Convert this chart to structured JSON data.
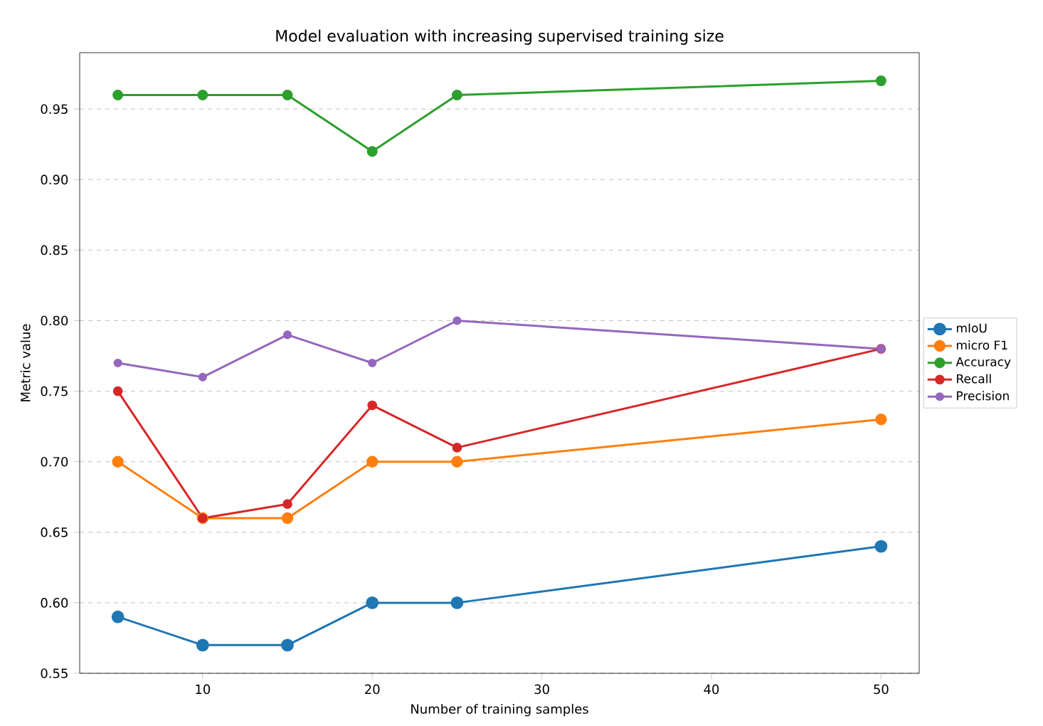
{
  "chart_data": {
    "type": "line",
    "title": "Model evaluation with increasing supervised training size",
    "xlabel": "Number of training samples",
    "ylabel": "Metric value",
    "x": [
      5,
      10,
      15,
      20,
      25,
      50
    ],
    "series": [
      {
        "name": "mIoU",
        "color": "#1f77b4",
        "values": [
          0.59,
          0.57,
          0.57,
          0.6,
          0.6,
          0.64
        ]
      },
      {
        "name": "micro F1",
        "color": "#ff7f0e",
        "values": [
          0.7,
          0.66,
          0.66,
          0.7,
          0.7,
          0.73
        ]
      },
      {
        "name": "Accuracy",
        "color": "#2ca02c",
        "values": [
          0.96,
          0.96,
          0.96,
          0.92,
          0.96,
          0.97
        ]
      },
      {
        "name": "Recall",
        "color": "#d62728",
        "values": [
          0.75,
          0.66,
          0.67,
          0.74,
          0.71,
          0.78
        ]
      },
      {
        "name": "Precision",
        "color": "#9467bd",
        "values": [
          0.77,
          0.76,
          0.79,
          0.77,
          0.8,
          0.78
        ]
      }
    ],
    "xlim": [
      2.75,
      52.25
    ],
    "ylim": [
      0.55,
      0.99
    ],
    "xticks": [
      10,
      20,
      30,
      40,
      50
    ],
    "yticks": [
      {
        "value": 0.55,
        "label": "0.55"
      },
      {
        "value": 0.6,
        "label": "0.60"
      },
      {
        "value": 0.65,
        "label": "0.65"
      },
      {
        "value": 0.7,
        "label": "0.70"
      },
      {
        "value": 0.75,
        "label": "0.75"
      },
      {
        "value": 0.8,
        "label": "0.80"
      },
      {
        "value": 0.85,
        "label": "0.85"
      },
      {
        "value": 0.9,
        "label": "0.90"
      },
      {
        "value": 0.95,
        "label": "0.95"
      }
    ],
    "grid": "y",
    "legend": "right",
    "marker": "circle",
    "line_style": "solid"
  }
}
